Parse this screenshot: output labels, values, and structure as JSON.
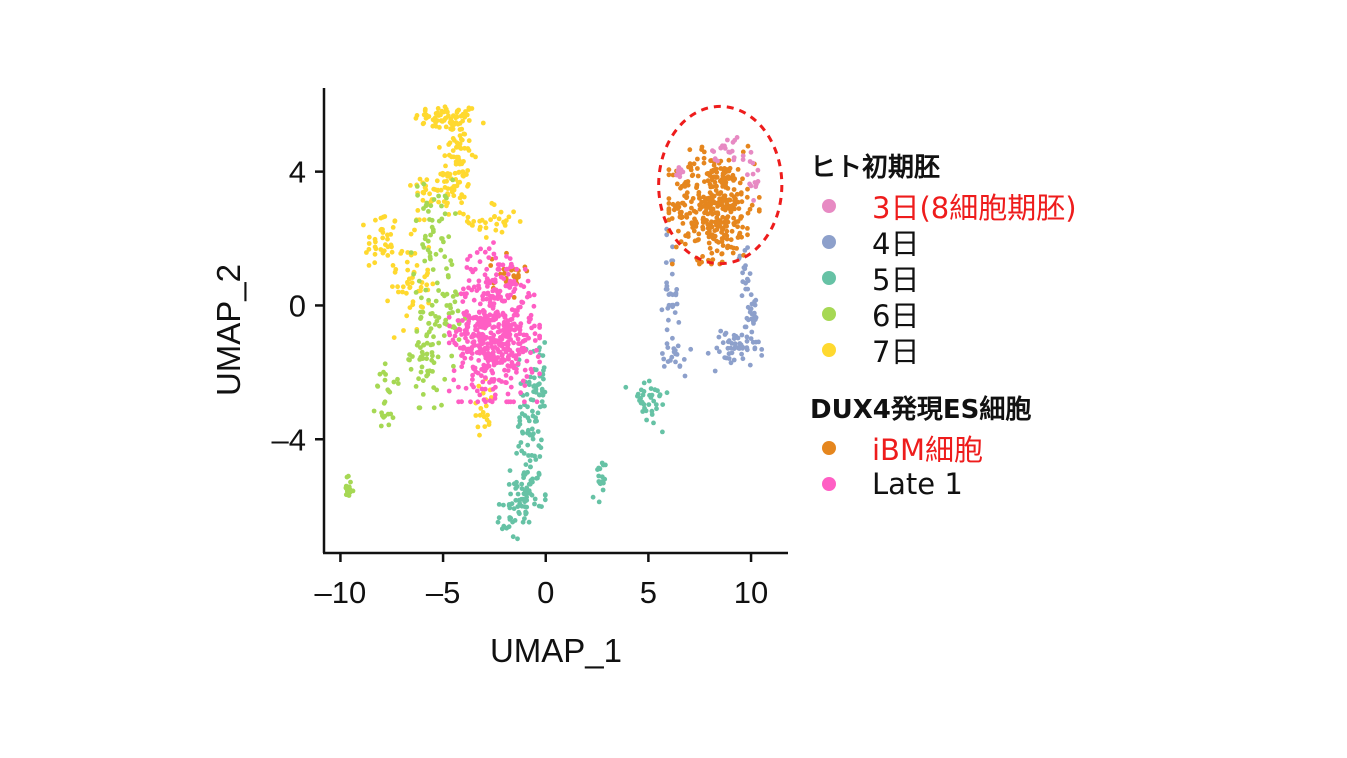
{
  "chart_data": {
    "type": "scatter",
    "xlabel": "UMAP_1",
    "ylabel": "UMAP_2",
    "xlim": [
      -10.8,
      11.8
    ],
    "ylim": [
      -7.4,
      6.5
    ],
    "xticks": [
      {
        "v": -10,
        "label": "–10"
      },
      {
        "v": -5,
        "label": "–5"
      },
      {
        "v": 0,
        "label": "0"
      },
      {
        "v": 5,
        "label": "5"
      },
      {
        "v": 10,
        "label": "10"
      }
    ],
    "yticks": [
      {
        "v": 4,
        "label": "4"
      },
      {
        "v": 0,
        "label": "0"
      },
      {
        "v": -4,
        "label": "–4"
      }
    ],
    "highlight_ellipse": {
      "cx": 8.5,
      "cy": 3.6,
      "rx": 3.0,
      "ry": 4.7,
      "color": "#ee1c1c"
    },
    "legend": [
      {
        "title": "ヒト初期胚",
        "items": [
          {
            "label": "3日(8細胞期胚)",
            "color": "#e78ac3",
            "highlight": true
          },
          {
            "label": "4日",
            "color": "#8da0cb",
            "highlight": false
          },
          {
            "label": "5日",
            "color": "#66c2a5",
            "highlight": false
          },
          {
            "label": "6日",
            "color": "#a6d854",
            "highlight": false
          },
          {
            "label": "7日",
            "color": "#ffd92f",
            "highlight": false
          }
        ]
      },
      {
        "title": "DUX4発現ES細胞",
        "items": [
          {
            "label": "iBM細胞",
            "color": "#e5861e",
            "highlight": true
          },
          {
            "label": "Late 1",
            "color": "#ff5ec4",
            "highlight": false
          }
        ]
      }
    ],
    "series": [
      {
        "name": "7日",
        "color": "#ffd92f",
        "clusters": [
          {
            "x": -4.8,
            "y": 5.6,
            "sx": 0.8,
            "sy": 0.2,
            "n": 60
          },
          {
            "x": -4.3,
            "y": 4.3,
            "sx": 0.4,
            "sy": 0.9,
            "n": 80
          },
          {
            "x": -5.3,
            "y": 3.5,
            "sx": 0.6,
            "sy": 0.3,
            "n": 40
          },
          {
            "x": -8.0,
            "y": 1.9,
            "sx": 0.4,
            "sy": 0.5,
            "n": 35
          },
          {
            "x": -6.6,
            "y": 0.8,
            "sx": 0.5,
            "sy": 0.8,
            "n": 55
          },
          {
            "x": -2.5,
            "y": 2.5,
            "sx": 0.6,
            "sy": 0.3,
            "n": 30
          },
          {
            "x": -3.0,
            "y": -3.0,
            "sx": 0.3,
            "sy": 0.4,
            "n": 20
          }
        ]
      },
      {
        "name": "6日",
        "color": "#a6d854",
        "clusters": [
          {
            "x": -5.5,
            "y": 2.0,
            "sx": 0.5,
            "sy": 0.9,
            "n": 55
          },
          {
            "x": -5.8,
            "y": -1.3,
            "sx": 0.4,
            "sy": 0.8,
            "n": 70
          },
          {
            "x": -7.7,
            "y": -2.8,
            "sx": 0.3,
            "sy": 0.5,
            "n": 25
          },
          {
            "x": -9.6,
            "y": -5.5,
            "sx": 0.12,
            "sy": 0.2,
            "n": 18
          },
          {
            "x": -4.5,
            "y": -0.5,
            "sx": 0.3,
            "sy": 0.6,
            "n": 25
          }
        ]
      },
      {
        "name": "5日",
        "color": "#66c2a5",
        "clusters": [
          {
            "x": -0.8,
            "y": -3.4,
            "sx": 0.3,
            "sy": 1.0,
            "n": 80
          },
          {
            "x": -0.9,
            "y": -5.6,
            "sx": 0.4,
            "sy": 0.4,
            "n": 55
          },
          {
            "x": -1.7,
            "y": -6.4,
            "sx": 0.3,
            "sy": 0.3,
            "n": 20
          },
          {
            "x": 2.6,
            "y": -5.4,
            "sx": 0.15,
            "sy": 0.4,
            "n": 18
          },
          {
            "x": 5.0,
            "y": -2.9,
            "sx": 0.5,
            "sy": 0.4,
            "n": 35
          },
          {
            "x": -0.2,
            "y": -2.2,
            "sx": 0.2,
            "sy": 0.5,
            "n": 20
          }
        ]
      },
      {
        "name": "4日",
        "color": "#8da0cb",
        "clusters": [
          {
            "x": 6.1,
            "y": 0.3,
            "sx": 0.2,
            "sy": 0.9,
            "n": 35
          },
          {
            "x": 9.2,
            "y": -1.3,
            "sx": 0.6,
            "sy": 0.3,
            "n": 50
          },
          {
            "x": 10.0,
            "y": -0.2,
            "sx": 0.2,
            "sy": 0.5,
            "n": 25
          },
          {
            "x": 9.7,
            "y": 1.0,
            "sx": 0.15,
            "sy": 0.4,
            "n": 15
          },
          {
            "x": 6.4,
            "y": -1.5,
            "sx": 0.3,
            "sy": 0.3,
            "n": 15
          }
        ]
      },
      {
        "name": "iBM細胞",
        "color": "#e5861e",
        "clusters": [
          {
            "x": 8.2,
            "y": 3.0,
            "sx": 1.0,
            "sy": 0.8,
            "n": 360
          },
          {
            "x": -1.8,
            "y": 0.9,
            "sx": 0.4,
            "sy": 0.3,
            "n": 30
          }
        ]
      },
      {
        "name": "Late 1",
        "color": "#ff5ec4",
        "clusters": [
          {
            "x": -2.5,
            "y": -0.9,
            "sx": 1.0,
            "sy": 0.9,
            "n": 480
          },
          {
            "x": -2.6,
            "y": 1.0,
            "sx": 0.6,
            "sy": 0.4,
            "n": 40
          }
        ]
      },
      {
        "name": "3日(8細胞期胚)",
        "color": "#e78ac3",
        "clusters": [
          {
            "x": 8.9,
            "y": 4.7,
            "sx": 0.5,
            "sy": 0.2,
            "n": 22
          },
          {
            "x": 10.1,
            "y": 3.8,
            "sx": 0.15,
            "sy": 0.3,
            "n": 12
          },
          {
            "x": 6.5,
            "y": 4.0,
            "sx": 0.2,
            "sy": 0.2,
            "n": 8
          }
        ]
      }
    ]
  }
}
